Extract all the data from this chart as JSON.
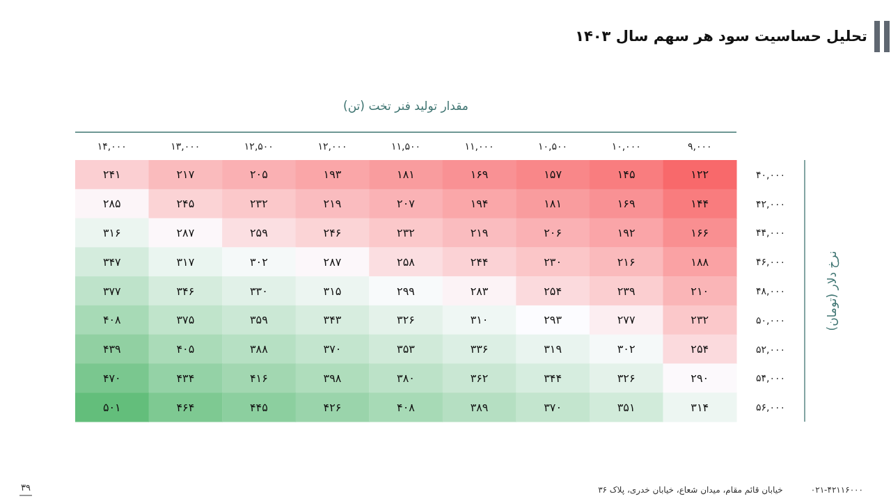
{
  "chart_data": {
    "type": "heatmap",
    "title": "تحلیل حساسیت سود هر سهم سال ۱۴۰۳",
    "xlabel": "مقدار تولید فنر تخت (تن)",
    "ylabel": "نرخ دلار (تومان)",
    "categories": [
      "۱۴,۰۰۰",
      "۱۳,۰۰۰",
      "۱۲,۵۰۰",
      "۱۲,۰۰۰",
      "۱۱,۵۰۰",
      "۱۱,۰۰۰",
      "۱۰,۵۰۰",
      "۱۰,۰۰۰",
      "۹,۰۰۰"
    ],
    "y_categories": [
      "۴۰,۰۰۰",
      "۴۲,۰۰۰",
      "۴۴,۰۰۰",
      "۴۶,۰۰۰",
      "۴۸,۰۰۰",
      "۵۰,۰۰۰",
      "۵۲,۰۰۰",
      "۵۴,۰۰۰",
      "۵۶,۰۰۰"
    ],
    "cells": [
      [
        241,
        217,
        205,
        193,
        181,
        169,
        157,
        145,
        122
      ],
      [
        285,
        245,
        232,
        219,
        207,
        194,
        181,
        169,
        144
      ],
      [
        316,
        287,
        259,
        246,
        232,
        219,
        206,
        192,
        166
      ],
      [
        347,
        317,
        302,
        287,
        258,
        244,
        230,
        216,
        188
      ],
      [
        377,
        346,
        330,
        315,
        299,
        283,
        254,
        239,
        210
      ],
      [
        408,
        375,
        359,
        343,
        326,
        310,
        293,
        277,
        232
      ],
      [
        439,
        405,
        388,
        370,
        353,
        336,
        319,
        302,
        254
      ],
      [
        470,
        434,
        416,
        398,
        380,
        362,
        344,
        326,
        290
      ],
      [
        501,
        464,
        445,
        426,
        408,
        389,
        370,
        351,
        314
      ]
    ],
    "cell_labels": [
      [
        "۲۴۱",
        "۲۱۷",
        "۲۰۵",
        "۱۹۳",
        "۱۸۱",
        "۱۶۹",
        "۱۵۷",
        "۱۴۵",
        "۱۲۲"
      ],
      [
        "۲۸۵",
        "۲۴۵",
        "۲۳۲",
        "۲۱۹",
        "۲۰۷",
        "۱۹۴",
        "۱۸۱",
        "۱۶۹",
        "۱۴۴"
      ],
      [
        "۳۱۶",
        "۲۸۷",
        "۲۵۹",
        "۲۴۶",
        "۲۳۲",
        "۲۱۹",
        "۲۰۶",
        "۱۹۲",
        "۱۶۶"
      ],
      [
        "۳۴۷",
        "۳۱۷",
        "۳۰۲",
        "۲۸۷",
        "۲۵۸",
        "۲۴۴",
        "۲۳۰",
        "۲۱۶",
        "۱۸۸"
      ],
      [
        "۳۷۷",
        "۳۴۶",
        "۳۳۰",
        "۳۱۵",
        "۲۹۹",
        "۲۸۳",
        "۲۵۴",
        "۲۳۹",
        "۲۱۰"
      ],
      [
        "۴۰۸",
        "۳۷۵",
        "۳۵۹",
        "۳۴۳",
        "۳۲۶",
        "۳۱۰",
        "۲۹۳",
        "۲۷۷",
        "۲۳۲"
      ],
      [
        "۴۳۹",
        "۴۰۵",
        "۳۸۸",
        "۳۷۰",
        "۳۵۳",
        "۳۳۶",
        "۳۱۹",
        "۳۰۲",
        "۲۵۴"
      ],
      [
        "۴۷۰",
        "۴۳۴",
        "۴۱۶",
        "۳۹۸",
        "۳۸۰",
        "۳۶۲",
        "۳۴۴",
        "۳۲۶",
        "۲۹۰"
      ],
      [
        "۵۰۱",
        "۴۶۴",
        "۴۴۵",
        "۴۲۶",
        "۴۰۸",
        "۳۸۹",
        "۳۷۰",
        "۳۵۱",
        "۳۱۴"
      ]
    ],
    "annotations": [
      "۳۹",
      "۰۲۱-۴۲۱۱۶۰۰۰",
      "خیابان قائم مقام، میدان شعاع، خیابان خدری، پلاک ۳۶"
    ]
  }
}
